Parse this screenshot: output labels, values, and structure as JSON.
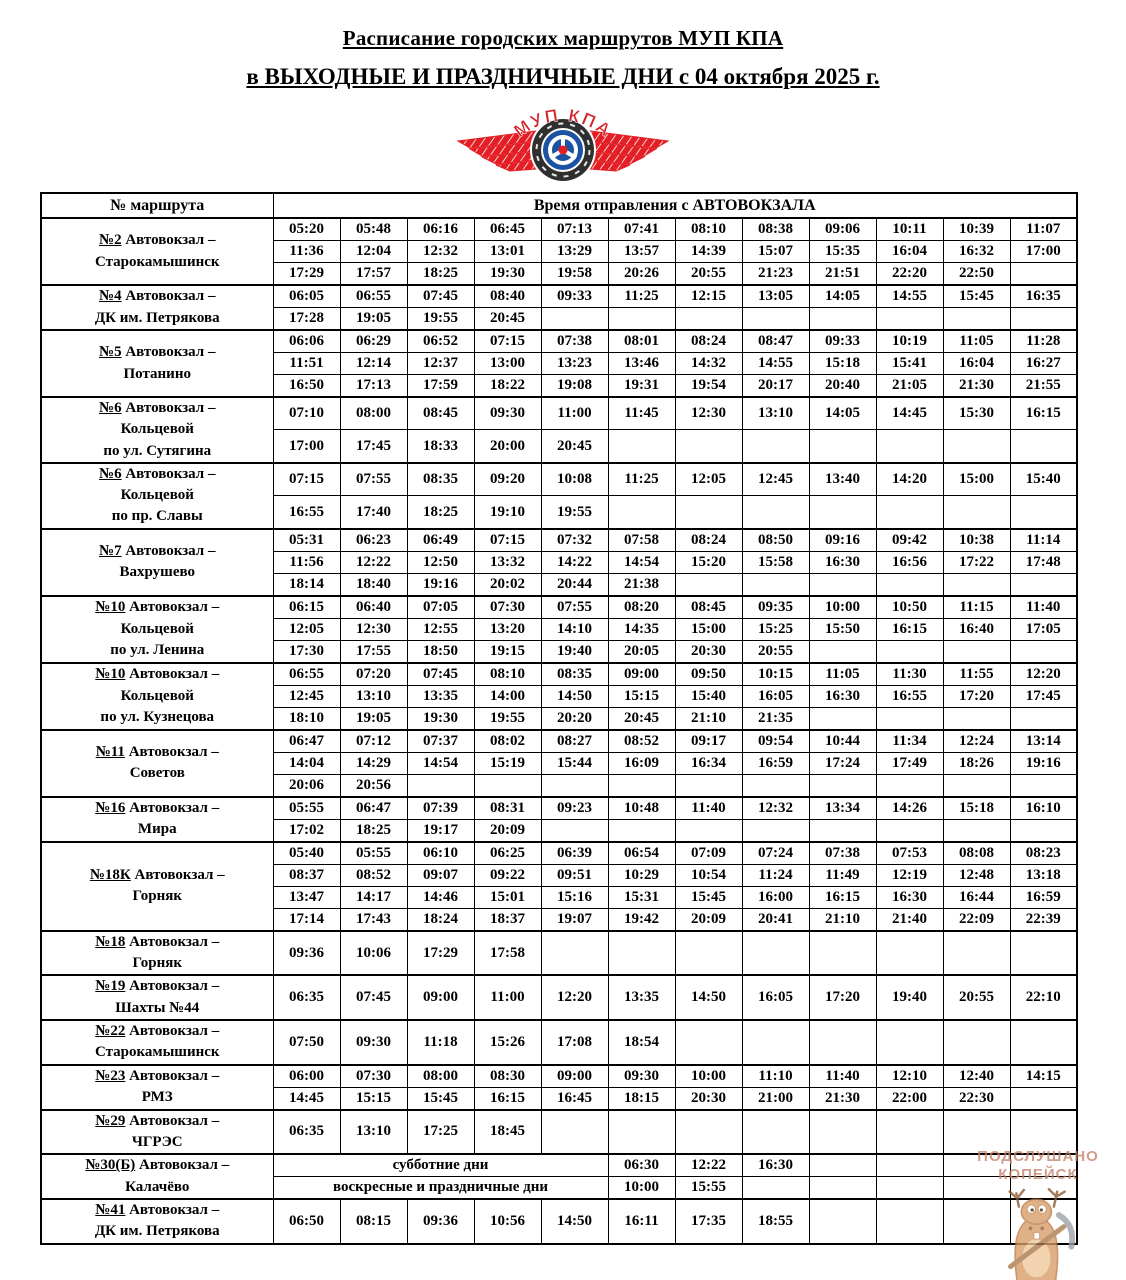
{
  "title": "Расписание городских маршрутов МУП КПА",
  "subtitle": "в ВЫХОДНЫЕ И ПРАЗДНИЧНЫЕ ДНИ с 04 октября 2025 г.",
  "logo": {
    "text": "МУП КПА"
  },
  "watermark": {
    "line1": "ПОДСЛУШАНО",
    "line2": "КОПЕЙСК"
  },
  "colors": {
    "logo_red": "#e31e24",
    "logo_blue": "#1c52a3",
    "tire_dark": "#2f2f2f",
    "watermark_brown": "#c5826b",
    "moose_tan": "#d89c66"
  },
  "table": {
    "col1_header": "№ маршрута",
    "times_header": "Время отправления с АВТОВОКЗАЛА",
    "routes": [
      {
        "num": "№2",
        "from": "Автовокзал –",
        "dest": [
          "Старокамышинск"
        ],
        "rows": [
          [
            "05:20",
            "05:48",
            "06:16",
            "06:45",
            "07:13",
            "07:41",
            "08:10",
            "08:38",
            "09:06",
            "10:11",
            "10:39",
            "11:07"
          ],
          [
            "11:36",
            "12:04",
            "12:32",
            "13:01",
            "13:29",
            "13:57",
            "14:39",
            "15:07",
            "15:35",
            "16:04",
            "16:32",
            "17:00"
          ],
          [
            "17:29",
            "17:57",
            "18:25",
            "19:30",
            "19:58",
            "20:26",
            "20:55",
            "21:23",
            "21:51",
            "22:20",
            "22:50"
          ]
        ]
      },
      {
        "num": "№4",
        "from": "Автовокзал –",
        "dest": [
          "ДК им. Петрякова"
        ],
        "rows": [
          [
            "06:05",
            "06:55",
            "07:45",
            "08:40",
            "09:33",
            "11:25",
            "12:15",
            "13:05",
            "14:05",
            "14:55",
            "15:45",
            "16:35"
          ],
          [
            "17:28",
            "19:05",
            "19:55",
            "20:45"
          ]
        ]
      },
      {
        "num": "№5",
        "from": "Автовокзал –",
        "dest": [
          "Потанино"
        ],
        "rows": [
          [
            "06:06",
            "06:29",
            "06:52",
            "07:15",
            "07:38",
            "08:01",
            "08:24",
            "08:47",
            "09:33",
            "10:19",
            "11:05",
            "11:28"
          ],
          [
            "11:51",
            "12:14",
            "12:37",
            "13:00",
            "13:23",
            "13:46",
            "14:32",
            "14:55",
            "15:18",
            "15:41",
            "16:04",
            "16:27"
          ],
          [
            "16:50",
            "17:13",
            "17:59",
            "18:22",
            "19:08",
            "19:31",
            "19:54",
            "20:17",
            "20:40",
            "21:05",
            "21:30",
            "21:55"
          ]
        ]
      },
      {
        "num": "№6",
        "from": "Автовокзал –",
        "dest": [
          "Кольцевой",
          "по ул. Сутягина"
        ],
        "rows": [
          [
            "07:10",
            "08:00",
            "08:45",
            "09:30",
            "11:00",
            "11:45",
            "12:30",
            "13:10",
            "14:05",
            "14:45",
            "15:30",
            "16:15"
          ],
          [
            "17:00",
            "17:45",
            "18:33",
            "20:00",
            "20:45"
          ]
        ]
      },
      {
        "num": "№6",
        "from": "Автовокзал –",
        "dest": [
          "Кольцевой",
          "по пр. Славы"
        ],
        "rows": [
          [
            "07:15",
            "07:55",
            "08:35",
            "09:20",
            "10:08",
            "11:25",
            "12:05",
            "12:45",
            "13:40",
            "14:20",
            "15:00",
            "15:40"
          ],
          [
            "16:55",
            "17:40",
            "18:25",
            "19:10",
            "19:55"
          ]
        ]
      },
      {
        "num": "№7",
        "from": "Автовокзал –",
        "dest": [
          "Вахрушево"
        ],
        "rows": [
          [
            "05:31",
            "06:23",
            "06:49",
            "07:15",
            "07:32",
            "07:58",
            "08:24",
            "08:50",
            "09:16",
            "09:42",
            "10:38",
            "11:14"
          ],
          [
            "11:56",
            "12:22",
            "12:50",
            "13:32",
            "14:22",
            "14:54",
            "15:20",
            "15:58",
            "16:30",
            "16:56",
            "17:22",
            "17:48"
          ],
          [
            "18:14",
            "18:40",
            "19:16",
            "20:02",
            "20:44",
            "21:38"
          ]
        ]
      },
      {
        "num": "№10",
        "from": "Автовокзал –",
        "dest": [
          "Кольцевой",
          "по ул. Ленина"
        ],
        "rows": [
          [
            "06:15",
            "06:40",
            "07:05",
            "07:30",
            "07:55",
            "08:20",
            "08:45",
            "09:35",
            "10:00",
            "10:50",
            "11:15",
            "11:40"
          ],
          [
            "12:05",
            "12:30",
            "12:55",
            "13:20",
            "14:10",
            "14:35",
            "15:00",
            "15:25",
            "15:50",
            "16:15",
            "16:40",
            "17:05"
          ],
          [
            "17:30",
            "17:55",
            "18:50",
            "19:15",
            "19:40",
            "20:05",
            "20:30",
            "20:55"
          ]
        ]
      },
      {
        "num": "№10",
        "from": "Автовокзал –",
        "dest": [
          "Кольцевой",
          "по ул. Кузнецова"
        ],
        "rows": [
          [
            "06:55",
            "07:20",
            "07:45",
            "08:10",
            "08:35",
            "09:00",
            "09:50",
            "10:15",
            "11:05",
            "11:30",
            "11:55",
            "12:20"
          ],
          [
            "12:45",
            "13:10",
            "13:35",
            "14:00",
            "14:50",
            "15:15",
            "15:40",
            "16:05",
            "16:30",
            "16:55",
            "17:20",
            "17:45"
          ],
          [
            "18:10",
            "19:05",
            "19:30",
            "19:55",
            "20:20",
            "20:45",
            "21:10",
            "21:35"
          ]
        ]
      },
      {
        "num": "№11",
        "from": "Автовокзал –",
        "dest": [
          "Советов"
        ],
        "rows": [
          [
            "06:47",
            "07:12",
            "07:37",
            "08:02",
            "08:27",
            "08:52",
            "09:17",
            "09:54",
            "10:44",
            "11:34",
            "12:24",
            "13:14"
          ],
          [
            "14:04",
            "14:29",
            "14:54",
            "15:19",
            "15:44",
            "16:09",
            "16:34",
            "16:59",
            "17:24",
            "17:49",
            "18:26",
            "19:16"
          ],
          [
            "20:06",
            "20:56"
          ]
        ]
      },
      {
        "num": "№16",
        "from": "Автовокзал –",
        "dest": [
          "Мира"
        ],
        "rows": [
          [
            "05:55",
            "06:47",
            "07:39",
            "08:31",
            "09:23",
            "10:48",
            "11:40",
            "12:32",
            "13:34",
            "14:26",
            "15:18",
            "16:10"
          ],
          [
            "17:02",
            "18:25",
            "19:17",
            "20:09"
          ]
        ]
      },
      {
        "num": "№18К",
        "from": "Автовокзал –",
        "dest": [
          "Горняк"
        ],
        "rows": [
          [
            "05:40",
            "05:55",
            "06:10",
            "06:25",
            "06:39",
            "06:54",
            "07:09",
            "07:24",
            "07:38",
            "07:53",
            "08:08",
            "08:23"
          ],
          [
            "08:37",
            "08:52",
            "09:07",
            "09:22",
            "09:51",
            "10:29",
            "10:54",
            "11:24",
            "11:49",
            "12:19",
            "12:48",
            "13:18"
          ],
          [
            "13:47",
            "14:17",
            "14:46",
            "15:01",
            "15:16",
            "15:31",
            "15:45",
            "16:00",
            "16:15",
            "16:30",
            "16:44",
            "16:59"
          ],
          [
            "17:14",
            "17:43",
            "18:24",
            "18:37",
            "19:07",
            "19:42",
            "20:09",
            "20:41",
            "21:10",
            "21:40",
            "22:09",
            "22:39"
          ]
        ]
      },
      {
        "num": "№18",
        "from": "Автовокзал –",
        "dest": [
          "Горняк"
        ],
        "rows": [
          [
            "09:36",
            "10:06",
            "17:29",
            "17:58"
          ]
        ]
      },
      {
        "num": "№19",
        "from": "Автовокзал –",
        "dest": [
          "Шахты №44"
        ],
        "rows": [
          [
            "06:35",
            "07:45",
            "09:00",
            "11:00",
            "12:20",
            "13:35",
            "14:50",
            "16:05",
            "17:20",
            "19:40",
            "20:55",
            "22:10"
          ]
        ]
      },
      {
        "num": "№22",
        "from": "Автовокзал –",
        "dest": [
          "Старокамышинск"
        ],
        "rows": [
          [
            "07:50",
            "09:30",
            "11:18",
            "15:26",
            "17:08",
            "18:54"
          ]
        ]
      },
      {
        "num": "№23",
        "from": "Автовокзал –",
        "dest": [
          "РМЗ"
        ],
        "rows": [
          [
            "06:00",
            "07:30",
            "08:00",
            "08:30",
            "09:00",
            "09:30",
            "10:00",
            "11:10",
            "11:40",
            "12:10",
            "12:40",
            "14:15"
          ],
          [
            "14:45",
            "15:15",
            "15:45",
            "16:15",
            "16:45",
            "18:15",
            "20:30",
            "21:00",
            "21:30",
            "22:00",
            "22:30"
          ]
        ]
      },
      {
        "num": "№29",
        "from": "Автовокзал –",
        "dest": [
          "ЧГРЭС"
        ],
        "rows": [
          [
            "06:35",
            "13:10",
            "17:25",
            "18:45"
          ]
        ]
      },
      {
        "num": "№30(Б)",
        "from": "Автовокзал –",
        "dest": [
          "Калачёво"
        ],
        "rows": [
          {
            "label": "субботние дни",
            "span": 5,
            "times": [
              "06:30",
              "12:22",
              "16:30"
            ]
          },
          {
            "label": "воскресные и праздничные дни",
            "span": 5,
            "times": [
              "10:00",
              "15:55"
            ]
          }
        ]
      },
      {
        "num": "№41",
        "from": "Автовокзал –",
        "dest": [
          "ДК им. Петрякова"
        ],
        "rows": [
          [
            "06:50",
            "08:15",
            "09:36",
            "10:56",
            "14:50",
            "16:11",
            "17:35",
            "18:55"
          ]
        ]
      }
    ]
  }
}
